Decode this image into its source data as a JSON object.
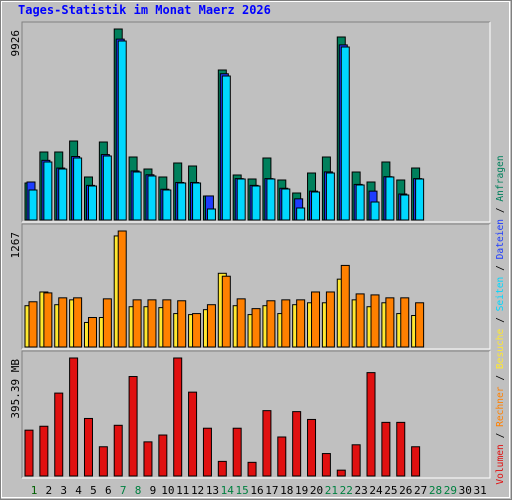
{
  "title": "Tages-Statistik im Monat Maerz 2026",
  "chart_data": [
    {
      "type": "bar",
      "ylim": [
        0,
        9926
      ],
      "yticks": [
        9926
      ],
      "series": [
        {
          "name": "Anfragen",
          "color": "#00805c",
          "values": [
            1923,
            3534,
            3534,
            4105,
            2235,
            4053,
            9926,
            3274,
            2650,
            2235,
            2962,
            2806,
            1247,
            7795,
            2339,
            2131,
            3222,
            2079,
            1403,
            2442,
            3274,
            9510,
            2494,
            1975,
            3014,
            2079,
            2702,
            null,
            null,
            null,
            null
          ]
        },
        {
          "name": "Dateien",
          "color": "#1e3cff",
          "values": [
            1975,
            3100,
            2700,
            3300,
            1800,
            3400,
            9400,
            2550,
            2350,
            1600,
            1950,
            1950,
            1250,
            7600,
            2150,
            1800,
            2150,
            1650,
            1100,
            1500,
            2500,
            9100,
            1850,
            1500,
            2250,
            1350,
            2150,
            null,
            null,
            null,
            null
          ]
        },
        {
          "name": "Seiten",
          "color": "#00d8ff",
          "values": [
            1559,
            3014,
            2650,
            3222,
            1767,
            3326,
            9302,
            2494,
            2287,
            1559,
            1923,
            1923,
            572,
            7483,
            2131,
            1767,
            2131,
            1611,
            624,
            1455,
            2442,
            8990,
            1819,
            935,
            2235,
            1299,
            2131,
            null,
            null,
            null,
            null
          ]
        }
      ]
    },
    {
      "type": "bar",
      "ylim": [
        0,
        1267
      ],
      "yticks": [
        1267
      ],
      "series": [
        {
          "name": "Besuche",
          "color": "#ffe830",
          "values": [
            451,
            601,
            462,
            515,
            268,
            322,
            1213,
            440,
            440,
            430,
            365,
            354,
            408,
            805,
            451,
            354,
            451,
            365,
            462,
            483,
            483,
            741,
            515,
            440,
            483,
            365,
            344,
            null,
            null,
            null,
            null
          ]
        },
        {
          "name": "Rechner",
          "color": "#ff8000",
          "values": [
            494,
            591,
            537,
            537,
            322,
            526,
            1267,
            515,
            515,
            515,
            505,
            365,
            462,
            773,
            526,
            419,
            505,
            515,
            515,
            601,
            601,
            891,
            580,
            569,
            537,
            537,
            483,
            null,
            null,
            null,
            null
          ]
        }
      ]
    },
    {
      "type": "bar",
      "ylim": [
        0,
        395.39
      ],
      "yticks": [
        {
          "value": 395.39,
          "label": "395.39 MB"
        }
      ],
      "categories": [
        "1",
        "2",
        "3",
        "4",
        "5",
        "6",
        "7",
        "8",
        "9",
        "10",
        "11",
        "12",
        "13",
        "14",
        "15",
        "16",
        "17",
        "18",
        "19",
        "20",
        "21",
        "22",
        "23",
        "24",
        "25",
        "26",
        "27",
        "28",
        "29",
        "30",
        "31"
      ],
      "category_colors": [
        "#006000",
        "#000000",
        "#000000",
        "#000000",
        "#000000",
        "#000000",
        "#008040",
        "#008040",
        "#000000",
        "#000000",
        "#000000",
        "#000000",
        "#000000",
        "#008040",
        "#008040",
        "#000000",
        "#000000",
        "#000000",
        "#000000",
        "#000000",
        "#008040",
        "#008040",
        "#000000",
        "#000000",
        "#000000",
        "#000000",
        "#000000",
        "#008040",
        "#008040",
        "#000000",
        "#000000"
      ],
      "series": [
        {
          "name": "Volumen",
          "color": "#e01010",
          "values": [
            153.6,
            166.7,
            277.8,
            395.39,
            192.8,
            98.0,
            169.9,
            333.3,
            114.4,
            137.3,
            395.39,
            281.0,
            160.1,
            49.0,
            160.1,
            45.8,
            219.0,
            130.7,
            215.7,
            189.5,
            75.2,
            19.6,
            104.6,
            346.4,
            179.7,
            179.7,
            98.0,
            null,
            null,
            null,
            null
          ]
        }
      ]
    }
  ]
}
